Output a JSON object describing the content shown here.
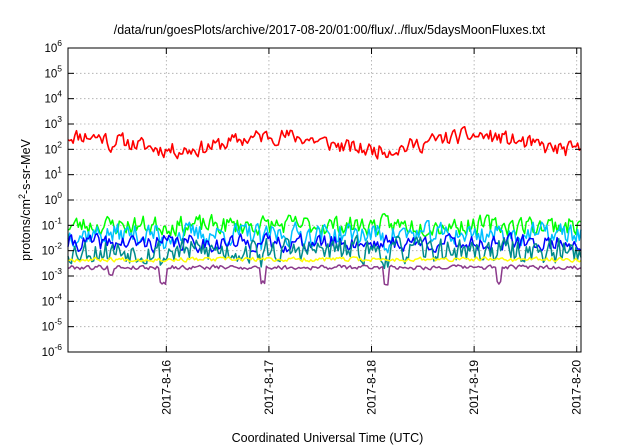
{
  "chart_data": {
    "type": "line",
    "title": "/data/run/goesPlots/archive/2017-08-20/01:00/flux/../flux/5daysMoonFluxes.txt",
    "xlabel": "Coordinated Universal Time (UTC)",
    "ylabel": "protons/cm²-s-sr-MeV",
    "y_scale": "log",
    "ylim": [
      1e-06,
      1000000.0
    ],
    "xlim": [
      "2017-08-15T01:00",
      "2017-08-20T01:00"
    ],
    "grid": true,
    "y_ticks": [
      {
        "value": 1e-06,
        "label": "10",
        "exp": "-6"
      },
      {
        "value": 1e-05,
        "label": "10",
        "exp": "-5"
      },
      {
        "value": 0.0001,
        "label": "10",
        "exp": "-4"
      },
      {
        "value": 0.001,
        "label": "10",
        "exp": "-3"
      },
      {
        "value": 0.01,
        "label": "10",
        "exp": "-2"
      },
      {
        "value": 0.1,
        "label": "10",
        "exp": "-1"
      },
      {
        "value": 1.0,
        "label": "10",
        "exp": "0"
      },
      {
        "value": 10.0,
        "label": "10",
        "exp": "1"
      },
      {
        "value": 100.0,
        "label": "10",
        "exp": "2"
      },
      {
        "value": 1000.0,
        "label": "10",
        "exp": "3"
      },
      {
        "value": 10000.0,
        "label": "10",
        "exp": "4"
      },
      {
        "value": 100000.0,
        "label": "10",
        "exp": "5"
      },
      {
        "value": 1000000.0,
        "label": "10",
        "exp": "6"
      }
    ],
    "x_ticks": [
      {
        "value": "2017-08-16T00:00",
        "label": "2017-8-16"
      },
      {
        "value": "2017-08-17T00:00",
        "label": "2017-8-17"
      },
      {
        "value": "2017-08-18T00:00",
        "label": "2017-8-18"
      },
      {
        "value": "2017-08-19T00:00",
        "label": "2017-8-19"
      },
      {
        "value": "2017-08-20T00:00",
        "label": "2017-8-20"
      }
    ],
    "series": [
      {
        "color": "#ff0000",
        "base": 180,
        "noise": 0.28,
        "wave": 0.35,
        "dips": [
          [
            0.083,
            0.25
          ]
        ],
        "seed": 11
      },
      {
        "color": "#00ff00",
        "base": 0.1,
        "noise": 0.35,
        "wave": 0.0,
        "dips": [],
        "seed": 23
      },
      {
        "color": "#00c0ff",
        "base": 0.045,
        "noise": 0.4,
        "wave": 0.0,
        "dips": [
          [
            0.185,
            0.35
          ],
          [
            0.38,
            0.4
          ],
          [
            0.62,
            0.4
          ]
        ],
        "seed": 37
      },
      {
        "color": "#0000ff",
        "base": 0.02,
        "noise": 0.3,
        "wave": 0.0,
        "dips": [],
        "seed": 41
      },
      {
        "color": "#008b8b",
        "base": 0.01,
        "noise": 0.45,
        "wave": 0.0,
        "dips": [
          [
            0.185,
            0.3
          ],
          [
            0.38,
            0.3
          ],
          [
            0.62,
            0.3
          ],
          [
            0.95,
            0.35
          ]
        ],
        "seed": 53
      },
      {
        "color": "#ffff00",
        "base": 0.0045,
        "noise": 0.08,
        "wave": 0.0,
        "dips": [],
        "seed": 67
      },
      {
        "color": "#8b3a8b",
        "base": 0.0022,
        "noise": 0.08,
        "wave": 0.0,
        "dips": [
          [
            0.083,
            0.25
          ],
          [
            0.185,
            0.6
          ],
          [
            0.38,
            0.6
          ],
          [
            0.62,
            0.6
          ],
          [
            0.84,
            0.6
          ]
        ],
        "seed": 79
      }
    ]
  }
}
